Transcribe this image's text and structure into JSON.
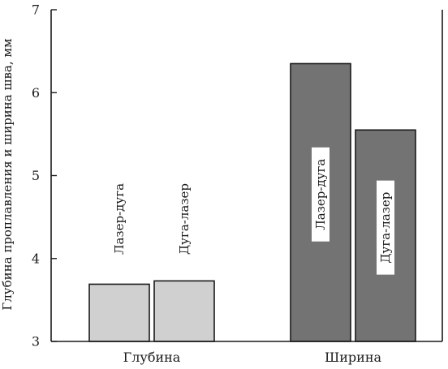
{
  "chart_data": {
    "type": "bar",
    "title": "",
    "xlabel": "",
    "ylabel": "Глубина проплавления и ширина шва, мм",
    "ylim": [
      3,
      7
    ],
    "yticks": [
      3,
      4,
      5,
      6,
      7
    ],
    "grid": false,
    "categories": [
      "Глубина",
      "Ширина"
    ],
    "series": [
      {
        "values": [
          3.69,
          6.35
        ]
      },
      {
        "values": [
          3.73,
          5.55
        ]
      }
    ],
    "bar_labels": [
      [
        "Лазер-дуга",
        "Дуга-лазер"
      ],
      [
        "Лазер-дуга",
        "Дуга-лазер"
      ]
    ],
    "colors": {
      "category_fills": [
        "#d0d0d0",
        "#737373"
      ],
      "stroke": "#1a1a1a",
      "text": "#1a1a1a",
      "label_box": "#ffffff"
    }
  }
}
